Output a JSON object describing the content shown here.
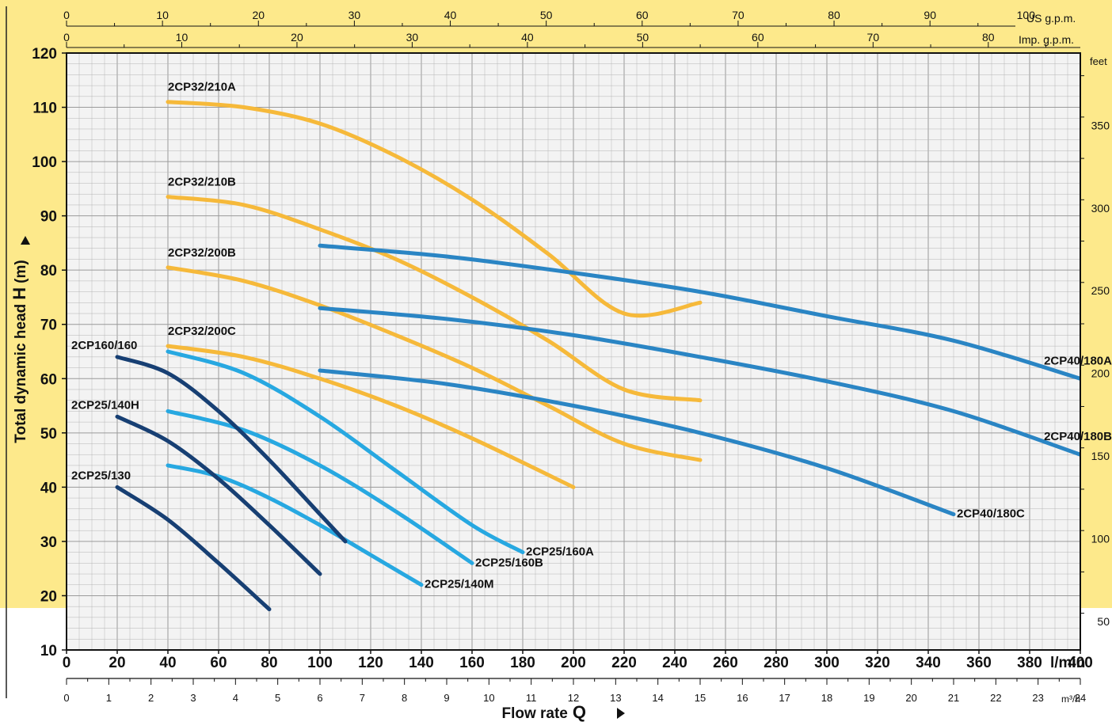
{
  "chart_data": {
    "type": "line",
    "ylabel_prefix": "Total dynamic head",
    "ylabel_symbol": "H",
    "ylabel_unit": "(m)",
    "xlabel_prefix": "Flow rate",
    "xlabel_symbol": "Q",
    "x_unit": "l/min",
    "m3h_unit": "m³/h",
    "us_unit": "US g.p.m.",
    "imp_unit": "Imp. g.p.m.",
    "feet_unit": "feet",
    "xlim": [
      0,
      400
    ],
    "ylim": [
      10,
      120
    ],
    "grid": true,
    "x_ticks": [
      "0",
      "20",
      "40",
      "60",
      "80",
      "100",
      "120",
      "140",
      "160",
      "180",
      "200",
      "220",
      "240",
      "260",
      "280",
      "300",
      "320",
      "340",
      "360",
      "380",
      "400"
    ],
    "y_ticks": [
      "10",
      "20",
      "30",
      "40",
      "50",
      "60",
      "70",
      "80",
      "90",
      "100",
      "110",
      "120"
    ],
    "m3h_ticks": [
      "0",
      "1",
      "2",
      "3",
      "4",
      "5",
      "6",
      "7",
      "8",
      "9",
      "10",
      "11",
      "12",
      "13",
      "14",
      "15",
      "16",
      "17",
      "18",
      "19",
      "20",
      "21",
      "22",
      "23",
      "24"
    ],
    "us_ticks": [
      "0",
      "10",
      "20",
      "30",
      "40",
      "50",
      "60",
      "70",
      "80",
      "90",
      "100"
    ],
    "imp_ticks": [
      "0",
      "10",
      "20",
      "30",
      "40",
      "50",
      "60",
      "70",
      "80"
    ],
    "feet_ticks": [
      "50",
      "100",
      "150",
      "200",
      "250",
      "300",
      "350"
    ],
    "colors": {
      "background": "#f3f3f3",
      "band": "#fde98b",
      "grid": "#b5b5b5",
      "yellow_curve": "#f6b93a",
      "blue_curve": "#2a85c4",
      "light_blue_curve": "#27a8e1",
      "dark_blue_curve": "#173f73"
    },
    "series": [
      {
        "name": "2CP32/210A",
        "color": "#f6b93a",
        "x": [
          40,
          70,
          100,
          130,
          160,
          190,
          220,
          250
        ],
        "y": [
          111,
          110,
          107,
          101,
          93,
          83,
          72,
          74
        ]
      },
      {
        "name": "2CP32/210B",
        "color": "#f6b93a",
        "x": [
          40,
          70,
          100,
          130,
          160,
          190,
          220,
          250
        ],
        "y": [
          93.5,
          92,
          87.5,
          82,
          75,
          67,
          58,
          56
        ]
      },
      {
        "name": "2CP32/200B",
        "color": "#f6b93a",
        "x": [
          40,
          70,
          100,
          130,
          160,
          190,
          220,
          250
        ],
        "y": [
          80.5,
          78,
          73.5,
          68,
          62,
          55,
          48,
          45
        ]
      },
      {
        "name": "2CP32/200C",
        "color": "#f6b93a",
        "x": [
          40,
          70,
          100,
          130,
          160,
          200
        ],
        "y": [
          66,
          64,
          60,
          55,
          49,
          40
        ]
      },
      {
        "name": "2CP40/180A",
        "color": "#2a85c4",
        "x": [
          100,
          150,
          200,
          250,
          300,
          350,
          400
        ],
        "y": [
          84.5,
          82.5,
          79.5,
          76,
          71.5,
          67,
          60
        ]
      },
      {
        "name": "2CP40/180B",
        "color": "#2a85c4",
        "x": [
          100,
          150,
          200,
          250,
          300,
          350,
          400
        ],
        "y": [
          73,
          71,
          68,
          64,
          59.5,
          54,
          46
        ]
      },
      {
        "name": "2CP40/180C",
        "color": "#2a85c4",
        "x": [
          100,
          150,
          200,
          250,
          300,
          350
        ],
        "y": [
          61.5,
          59,
          55,
          50,
          43.5,
          35
        ]
      },
      {
        "name": "2CP25/160A",
        "color": "#27a8e1",
        "x": [
          40,
          70,
          100,
          130,
          160,
          180
        ],
        "y": [
          65,
          61,
          53,
          43,
          33,
          28
        ]
      },
      {
        "name": "2CP25/160B",
        "color": "#27a8e1",
        "x": [
          40,
          70,
          100,
          130,
          160
        ],
        "y": [
          54,
          50.5,
          44,
          35.5,
          26
        ]
      },
      {
        "name": "2CP25/140M",
        "color": "#27a8e1",
        "x": [
          40,
          60,
          80,
          100,
          120,
          140
        ],
        "y": [
          44,
          42,
          38,
          33,
          27.5,
          22
        ]
      },
      {
        "name": "2CP160/160",
        "color": "#173f73",
        "x": [
          20,
          40,
          60,
          80,
          100,
          110
        ],
        "y": [
          64,
          61,
          54,
          45,
          35,
          30
        ]
      },
      {
        "name": "2CP25/140H",
        "color": "#173f73",
        "x": [
          20,
          40,
          60,
          80,
          100
        ],
        "y": [
          53,
          48.5,
          41.5,
          33,
          24
        ]
      },
      {
        "name": "2CP25/130",
        "color": "#173f73",
        "x": [
          20,
          40,
          60,
          80
        ],
        "y": [
          40,
          34,
          26,
          17.5
        ]
      }
    ]
  }
}
